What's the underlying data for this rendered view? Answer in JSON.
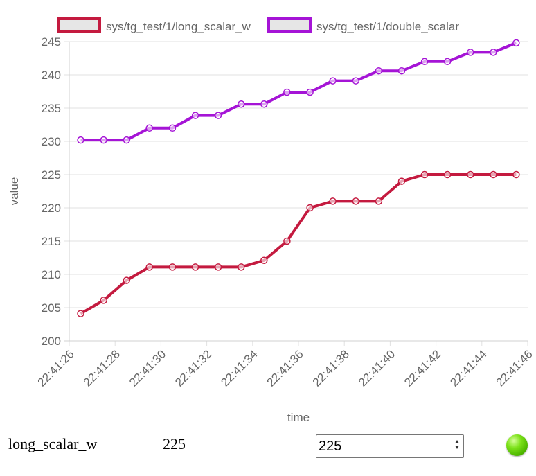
{
  "chart_data": {
    "type": "line",
    "xlabel": "time",
    "ylabel": "value",
    "ylim": [
      200,
      245
    ],
    "y_ticks": [
      200,
      205,
      210,
      215,
      220,
      225,
      230,
      235,
      240,
      245
    ],
    "x_tick_labels": [
      "22:41:26",
      "22:41:28",
      "22:41:30",
      "22:41:32",
      "22:41:34",
      "22:41:36",
      "22:41:38",
      "22:41:40",
      "22:41:42",
      "22:41:44",
      "22:41:46"
    ],
    "x": [
      "22:41:26.5",
      "22:41:27.5",
      "22:41:28.5",
      "22:41:29.5",
      "22:41:30.5",
      "22:41:31.5",
      "22:41:32.5",
      "22:41:33.5",
      "22:41:34.5",
      "22:41:35.5",
      "22:41:36.5",
      "22:41:37.5",
      "22:41:38.5",
      "22:41:39.5",
      "22:41:40.5",
      "22:41:41.5",
      "22:41:42.5",
      "22:41:43.5",
      "22:41:44.5",
      "22:41:45.5"
    ],
    "grid": true,
    "legend_position": "top",
    "series": [
      {
        "name": "sys/tg_test/1/long_scalar_w",
        "color": "#c41a3f",
        "values": [
          204.1,
          206.1,
          209.1,
          211.1,
          211.1,
          211.1,
          211.1,
          211.1,
          212.1,
          215.0,
          220.0,
          221.0,
          221.0,
          221.0,
          224.0,
          225.0,
          225.0,
          225.0,
          225.0,
          225.0
        ]
      },
      {
        "name": "sys/tg_test/1/double_scalar",
        "color": "#a514d6",
        "values": [
          230.2,
          230.2,
          230.2,
          232.0,
          232.0,
          233.9,
          233.9,
          235.6,
          235.6,
          237.4,
          237.4,
          239.1,
          239.1,
          240.6,
          240.6,
          242.0,
          242.0,
          243.4,
          243.4,
          244.8
        ]
      }
    ]
  },
  "attribute_row": {
    "name": "long_scalar_w",
    "value": "225",
    "input_value": "225",
    "led_color": "#66cc00"
  }
}
